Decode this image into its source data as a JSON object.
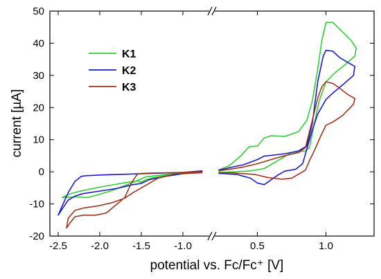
{
  "chart_data": {
    "type": "line",
    "title": "",
    "xlabel": "potential vs. Fc/Fc⁺ [V]",
    "ylabel": "current [µA]",
    "ylim": [
      -20,
      50
    ],
    "yticks": [
      -20,
      -10,
      0,
      10,
      20,
      30,
      40,
      50
    ],
    "x_axis_break": true,
    "x_segments": [
      {
        "xlim": [
          -2.6,
          -0.7
        ],
        "ticks": [
          -2.5,
          -2.0,
          -1.5,
          -1.0
        ],
        "tick_labels": [
          "-2.5",
          "-2.0",
          "-1.5",
          "-1.0"
        ]
      },
      {
        "xlim": [
          0.2,
          1.35
        ],
        "ticks": [
          0.5,
          1.0
        ],
        "tick_labels": [
          "0.5",
          "1.0"
        ]
      }
    ],
    "grid": false,
    "legend_position": "top-left",
    "series": [
      {
        "name": "K1",
        "color": "#33cc33",
        "segments": [
          [
            [
              -0.77,
              0.2
            ],
            [
              -1.0,
              -0.4
            ],
            [
              -1.2,
              -1.1
            ],
            [
              -1.35,
              -1.8
            ],
            [
              -1.45,
              -2.5
            ],
            [
              -1.5,
              -3.2
            ],
            [
              -1.55,
              -2.9
            ],
            [
              -1.7,
              -3.4
            ],
            [
              -2.0,
              -4.8
            ],
            [
              -2.2,
              -5.8
            ],
            [
              -2.35,
              -6.8
            ],
            [
              -2.42,
              -7.6
            ],
            [
              -2.45,
              -8.0
            ],
            [
              -2.3,
              -7.8
            ],
            [
              -2.15,
              -8.0
            ],
            [
              -2.0,
              -7.0
            ],
            [
              -1.85,
              -5.8
            ],
            [
              -1.6,
              -3.3
            ],
            [
              -1.45,
              -1.6
            ],
            [
              -1.2,
              -0.8
            ],
            [
              -1.0,
              -0.4
            ],
            [
              -0.77,
              -0.2
            ]
          ],
          [
            [
              0.22,
              0.6
            ],
            [
              0.3,
              2.0
            ],
            [
              0.38,
              5.0
            ],
            [
              0.44,
              7.8
            ],
            [
              0.5,
              8.0
            ],
            [
              0.55,
              10.5
            ],
            [
              0.6,
              11.2
            ],
            [
              0.7,
              11.0
            ],
            [
              0.8,
              12.5
            ],
            [
              0.86,
              16.0
            ],
            [
              0.9,
              22.0
            ],
            [
              0.94,
              32.0
            ],
            [
              0.97,
              41.0
            ],
            [
              1.0,
              46.5
            ],
            [
              1.05,
              46.5
            ],
            [
              1.12,
              43.5
            ],
            [
              1.18,
              41.0
            ],
            [
              1.22,
              38.5
            ],
            [
              1.21,
              36.0
            ],
            [
              1.13,
              33.0
            ],
            [
              1.07,
              31.0
            ],
            [
              1.0,
              28.0
            ],
            [
              0.95,
              22.0
            ],
            [
              0.91,
              14.0
            ],
            [
              0.88,
              7.5
            ],
            [
              0.85,
              6.5
            ],
            [
              0.75,
              6.0
            ],
            [
              0.65,
              3.5
            ],
            [
              0.55,
              1.0
            ],
            [
              0.45,
              0.3
            ],
            [
              0.35,
              0.0
            ],
            [
              0.22,
              -0.2
            ]
          ]
        ]
      },
      {
        "name": "K2",
        "color": "#1a1acc",
        "segments": [
          [
            [
              -0.77,
              0.3
            ],
            [
              -1.0,
              -0.2
            ],
            [
              -1.5,
              -0.6
            ],
            [
              -2.0,
              -1.0
            ],
            [
              -2.15,
              -1.2
            ],
            [
              -2.22,
              -1.4
            ],
            [
              -2.3,
              -3.0
            ],
            [
              -2.38,
              -6.5
            ],
            [
              -2.45,
              -10.5
            ],
            [
              -2.5,
              -13.5
            ],
            [
              -2.45,
              -11.5
            ],
            [
              -2.38,
              -8.8
            ],
            [
              -2.3,
              -7.6
            ],
            [
              -2.2,
              -6.8
            ],
            [
              -2.0,
              -6.0
            ],
            [
              -1.8,
              -5.2
            ],
            [
              -1.6,
              -4.0
            ],
            [
              -1.5,
              -3.6
            ],
            [
              -1.4,
              -2.4
            ],
            [
              -1.2,
              -1.4
            ],
            [
              -1.0,
              -0.6
            ],
            [
              -0.77,
              -0.1
            ]
          ],
          [
            [
              0.22,
              0.5
            ],
            [
              0.3,
              1.3
            ],
            [
              0.4,
              2.2
            ],
            [
              0.5,
              3.8
            ],
            [
              0.55,
              4.9
            ],
            [
              0.62,
              5.2
            ],
            [
              0.7,
              5.6
            ],
            [
              0.8,
              6.5
            ],
            [
              0.86,
              8.0
            ],
            [
              0.9,
              15.0
            ],
            [
              0.94,
              28.0
            ],
            [
              0.98,
              36.0
            ],
            [
              1.0,
              37.8
            ],
            [
              1.05,
              37.5
            ],
            [
              1.1,
              35.5
            ],
            [
              1.16,
              34.0
            ],
            [
              1.21,
              32.8
            ],
            [
              1.2,
              30.0
            ],
            [
              1.12,
              27.0
            ],
            [
              1.05,
              24.5
            ],
            [
              1.0,
              22.5
            ],
            [
              0.94,
              18.0
            ],
            [
              0.9,
              13.0
            ],
            [
              0.87,
              8.5
            ],
            [
              0.83,
              2.5
            ],
            [
              0.78,
              0.8
            ],
            [
              0.7,
              0.2
            ],
            [
              0.65,
              -1.0
            ],
            [
              0.55,
              -4.0
            ],
            [
              0.5,
              -3.5
            ],
            [
              0.45,
              -2.0
            ],
            [
              0.35,
              -0.8
            ],
            [
              0.22,
              -0.5
            ]
          ]
        ]
      },
      {
        "name": "K3",
        "color": "#a0341a",
        "segments": [
          [
            [
              -0.77,
              0.0
            ],
            [
              -1.0,
              -0.2
            ],
            [
              -1.2,
              -0.3
            ],
            [
              -1.4,
              -0.4
            ],
            [
              -1.5,
              -0.5
            ],
            [
              -1.55,
              -0.8
            ],
            [
              -1.62,
              -3.5
            ],
            [
              -1.7,
              -8.0
            ],
            [
              -1.8,
              -10.2
            ],
            [
              -1.92,
              -12.8
            ],
            [
              -2.05,
              -13.5
            ],
            [
              -2.2,
              -13.5
            ],
            [
              -2.3,
              -14.0
            ],
            [
              -2.36,
              -16.0
            ],
            [
              -2.4,
              -17.5
            ],
            [
              -2.38,
              -14.5
            ],
            [
              -2.3,
              -12.0
            ],
            [
              -2.2,
              -11.3
            ],
            [
              -2.0,
              -10.5
            ],
            [
              -1.85,
              -9.6
            ],
            [
              -1.7,
              -8.2
            ],
            [
              -1.6,
              -6.5
            ],
            [
              -1.5,
              -5.0
            ],
            [
              -1.3,
              -2.0
            ],
            [
              -1.1,
              -0.7
            ],
            [
              -0.77,
              -0.3
            ]
          ],
          [
            [
              0.22,
              0.3
            ],
            [
              0.3,
              0.8
            ],
            [
              0.4,
              1.5
            ],
            [
              0.5,
              2.5
            ],
            [
              0.6,
              3.8
            ],
            [
              0.7,
              5.0
            ],
            [
              0.8,
              6.0
            ],
            [
              0.85,
              7.5
            ],
            [
              0.9,
              16.0
            ],
            [
              0.94,
              23.0
            ],
            [
              0.97,
              26.5
            ],
            [
              1.0,
              28.0
            ],
            [
              1.05,
              27.5
            ],
            [
              1.1,
              26.0
            ],
            [
              1.16,
              24.0
            ],
            [
              1.21,
              22.8
            ],
            [
              1.2,
              21.0
            ],
            [
              1.12,
              17.5
            ],
            [
              1.05,
              15.5
            ],
            [
              1.0,
              14.5
            ],
            [
              0.96,
              11.0
            ],
            [
              0.92,
              7.0
            ],
            [
              0.88,
              3.5
            ],
            [
              0.85,
              0.5
            ],
            [
              0.75,
              -2.0
            ],
            [
              0.68,
              -2.3
            ],
            [
              0.58,
              -1.8
            ],
            [
              0.48,
              -0.8
            ],
            [
              0.3,
              -0.3
            ],
            [
              0.22,
              -0.3
            ]
          ]
        ]
      }
    ]
  }
}
